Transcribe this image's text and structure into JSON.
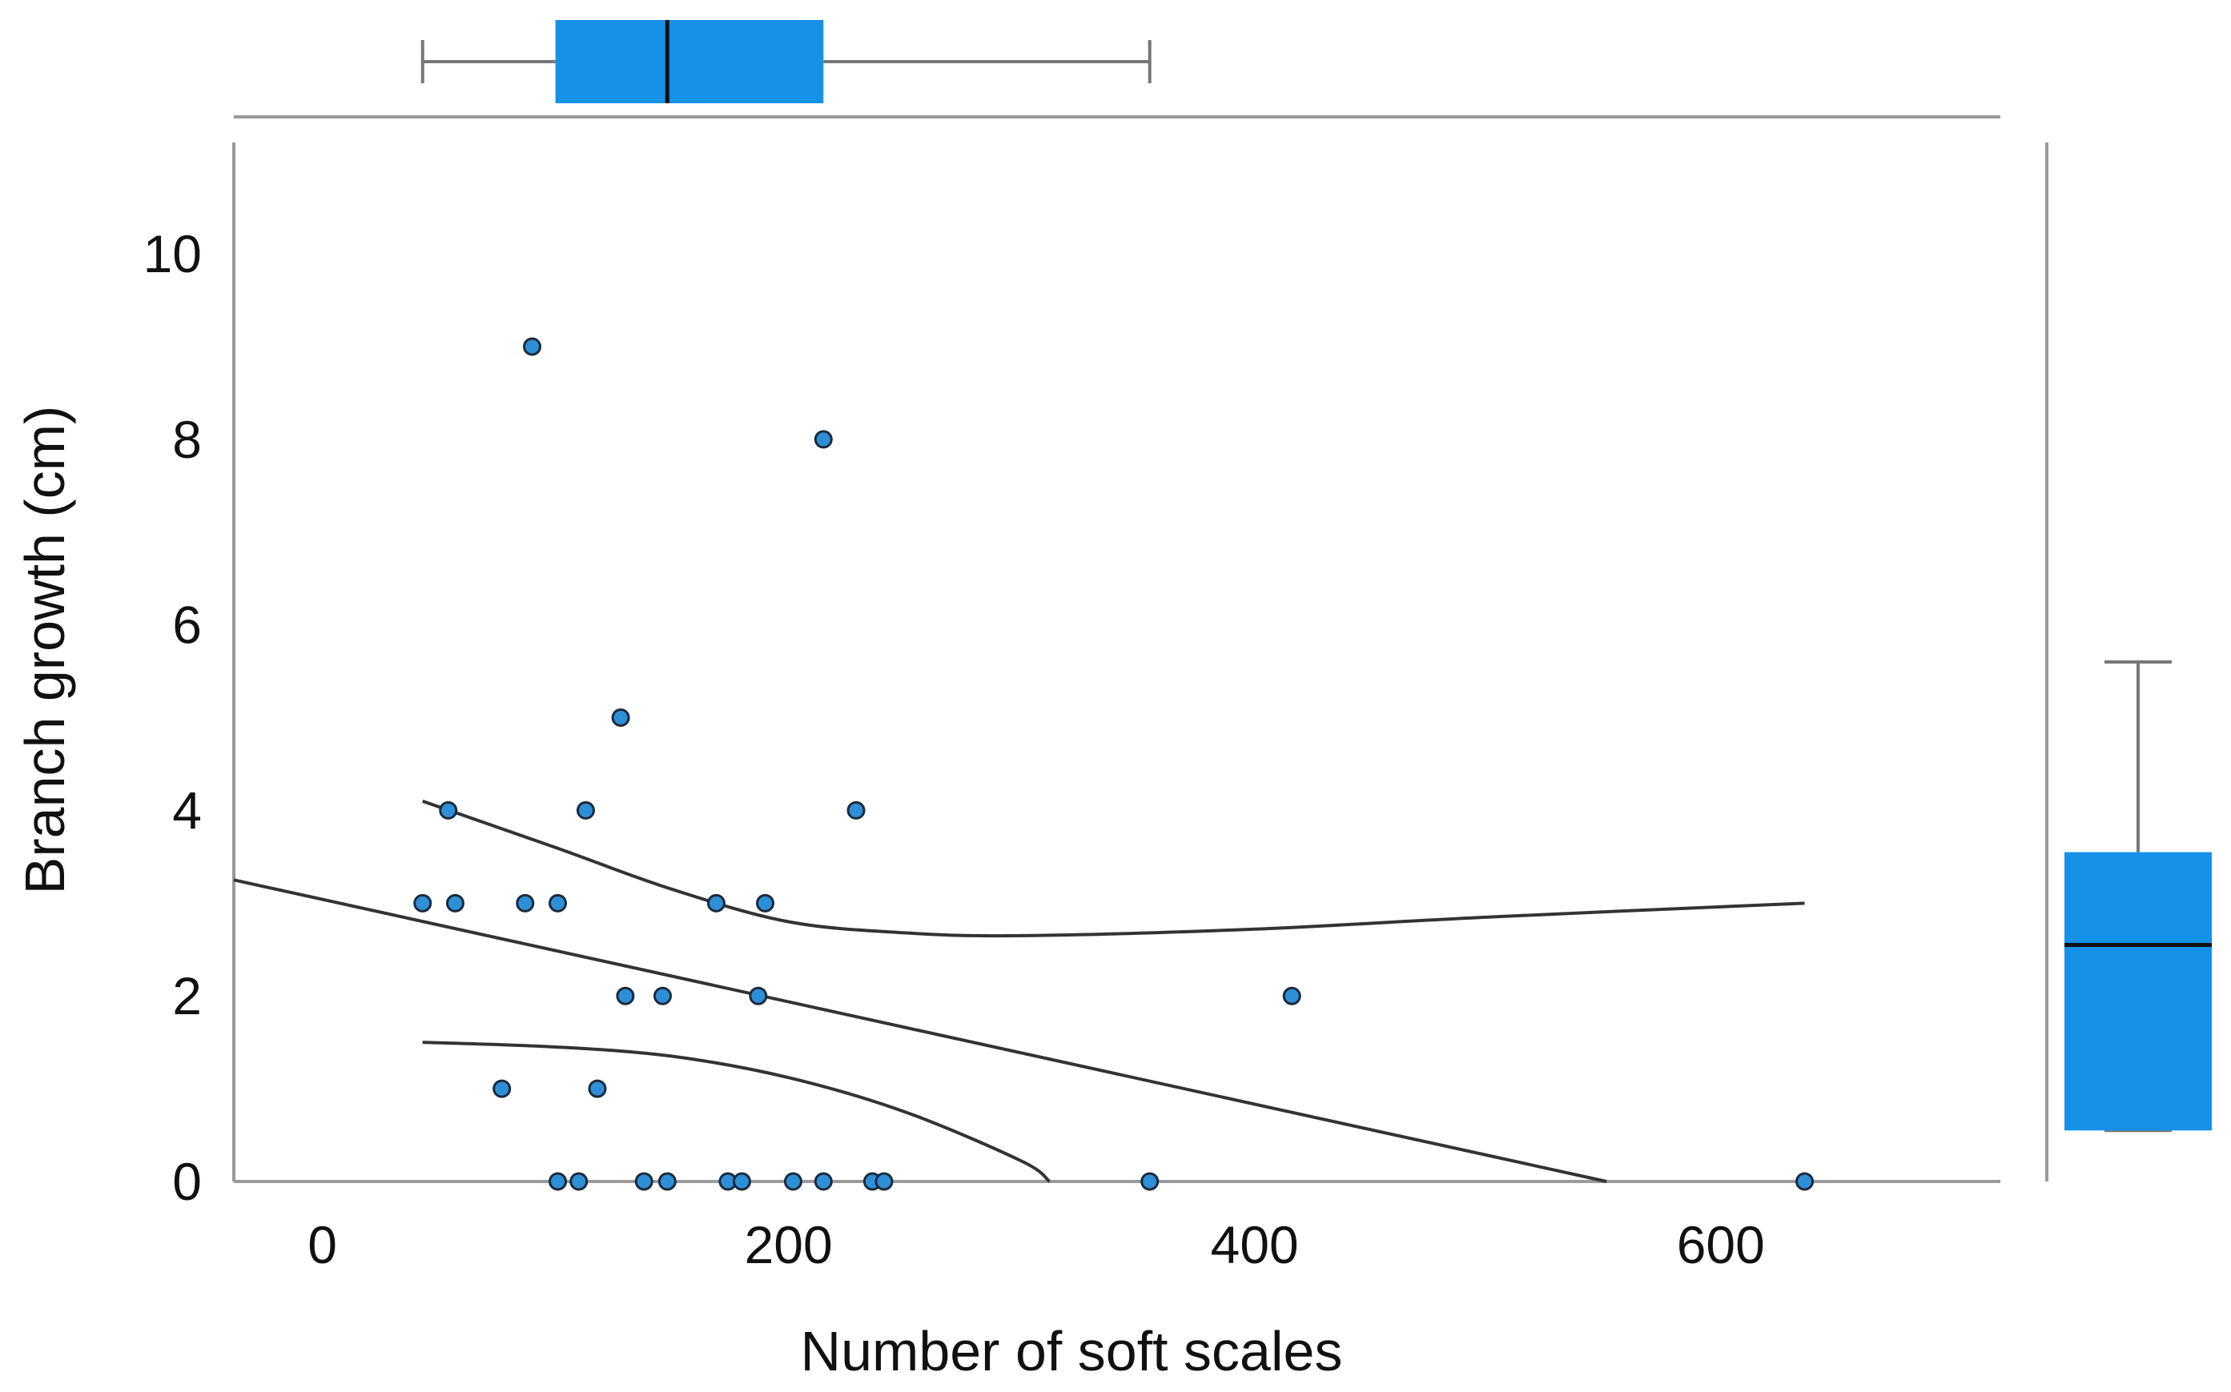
{
  "chart_data": {
    "type": "scatter",
    "xlabel": "Number of soft scales",
    "ylabel": "Branch growth (cm)",
    "x_ticks": [
      "0",
      "200",
      "400",
      "600"
    ],
    "x_tick_values": [
      0,
      200,
      400,
      600
    ],
    "y_ticks": [
      "0",
      "2",
      "4",
      "6",
      "8",
      "10"
    ],
    "y_tick_values": [
      0,
      2,
      4,
      6,
      8,
      10
    ],
    "xlim": [
      -38,
      720
    ],
    "ylim": [
      0,
      11.2
    ],
    "colors": {
      "point": "#2e8fd9",
      "box": "#1591e8",
      "line": "#333333"
    },
    "points": [
      {
        "x": 90,
        "y": 9
      },
      {
        "x": 215,
        "y": 8
      },
      {
        "x": 128,
        "y": 5
      },
      {
        "x": 54,
        "y": 4
      },
      {
        "x": 113,
        "y": 4
      },
      {
        "x": 229,
        "y": 4
      },
      {
        "x": 43,
        "y": 3
      },
      {
        "x": 57,
        "y": 3
      },
      {
        "x": 87,
        "y": 3
      },
      {
        "x": 101,
        "y": 3
      },
      {
        "x": 169,
        "y": 3
      },
      {
        "x": 190,
        "y": 3
      },
      {
        "x": 130,
        "y": 2
      },
      {
        "x": 146,
        "y": 2
      },
      {
        "x": 187,
        "y": 2
      },
      {
        "x": 416,
        "y": 2
      },
      {
        "x": 77,
        "y": 1
      },
      {
        "x": 118,
        "y": 1
      },
      {
        "x": 101,
        "y": 0
      },
      {
        "x": 110,
        "y": 0
      },
      {
        "x": 138,
        "y": 0
      },
      {
        "x": 148,
        "y": 0
      },
      {
        "x": 174,
        "y": 0
      },
      {
        "x": 180,
        "y": 0
      },
      {
        "x": 202,
        "y": 0
      },
      {
        "x": 215,
        "y": 0
      },
      {
        "x": 236,
        "y": 0
      },
      {
        "x": 241,
        "y": 0
      },
      {
        "x": 355,
        "y": 0
      },
      {
        "x": 636,
        "y": 0
      }
    ],
    "fit_line": [
      {
        "x": -38,
        "y": 3.25
      },
      {
        "x": 551,
        "y": 0
      }
    ],
    "ci_upper": [
      {
        "x": 43,
        "y": 4.1
      },
      {
        "x": 100,
        "y": 3.6
      },
      {
        "x": 150,
        "y": 3.15
      },
      {
        "x": 200,
        "y": 2.8
      },
      {
        "x": 250,
        "y": 2.68
      },
      {
        "x": 300,
        "y": 2.65
      },
      {
        "x": 400,
        "y": 2.72
      },
      {
        "x": 500,
        "y": 2.85
      },
      {
        "x": 636,
        "y": 3.0
      }
    ],
    "ci_lower": [
      {
        "x": 43,
        "y": 1.5
      },
      {
        "x": 100,
        "y": 1.45
      },
      {
        "x": 150,
        "y": 1.35
      },
      {
        "x": 200,
        "y": 1.12
      },
      {
        "x": 250,
        "y": 0.75
      },
      {
        "x": 300,
        "y": 0.22
      },
      {
        "x": 312,
        "y": 0
      }
    ],
    "boxplot_x": {
      "min": 43,
      "q1": 100,
      "median": 148,
      "q3": 215,
      "max": 355
    },
    "boxplot_y": {
      "min": 0.55,
      "q1": 0.55,
      "median": 2.55,
      "q3": 3.55,
      "max": 5.6
    }
  }
}
